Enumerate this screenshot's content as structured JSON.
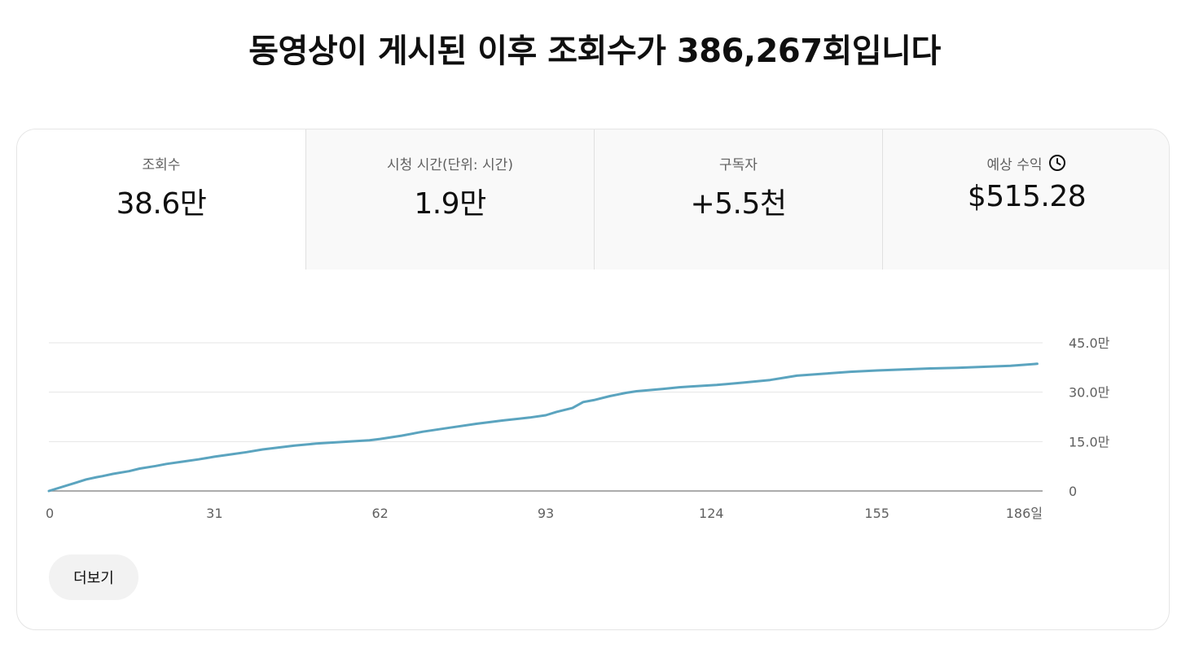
{
  "header": {
    "title_prefix": "동영상이 게시된 이후 조회수가 ",
    "title_count": "386,267",
    "title_suffix": "회입니다"
  },
  "tabs": [
    {
      "label": "조회수",
      "value": "38.6만",
      "selected": true
    },
    {
      "label": "시청 시간(단위: 시간)",
      "value": "1.9만",
      "selected": false
    },
    {
      "label": "구독자",
      "value": "+5.5천",
      "selected": false
    },
    {
      "label": "예상 수익",
      "value": "$515.28",
      "selected": false,
      "icon": "clock-icon"
    }
  ],
  "chart_data": {
    "type": "line",
    "title": "",
    "xlabel": "",
    "ylabel": "",
    "x_ticks": [
      "0",
      "31",
      "62",
      "93",
      "124",
      "155",
      "186일"
    ],
    "x_tick_values": [
      0,
      31,
      62,
      93,
      124,
      155,
      186
    ],
    "y_ticks": [
      "0",
      "15.0만",
      "30.0만",
      "45.0만"
    ],
    "y_tick_values": [
      0,
      150000,
      300000,
      450000
    ],
    "xlim": [
      0,
      186
    ],
    "ylim": [
      0,
      450000
    ],
    "grid": true,
    "color": "#5ba4bf",
    "series": [
      {
        "x": [
          0,
          5,
          7,
          9,
          10,
          12,
          15,
          17,
          20,
          22,
          25,
          28,
          31,
          34,
          37,
          40,
          43,
          46,
          50,
          55,
          60,
          62,
          66,
          70,
          75,
          80,
          85,
          90,
          93,
          95,
          98,
          100,
          102,
          105,
          108,
          110,
          115,
          118,
          120,
          125,
          130,
          135,
          138,
          140,
          145,
          150,
          155,
          160,
          165,
          170,
          175,
          180,
          185
        ],
        "y": [
          0,
          25000,
          35000,
          42000,
          45000,
          52000,
          60000,
          68000,
          76000,
          82000,
          89000,
          96000,
          104000,
          111000,
          118000,
          126000,
          132000,
          138000,
          144000,
          149000,
          154000,
          158000,
          168000,
          180000,
          192000,
          204000,
          214000,
          223000,
          230000,
          240000,
          252000,
          270000,
          276000,
          288000,
          298000,
          303000,
          310000,
          315000,
          317000,
          322000,
          329000,
          337000,
          345000,
          350000,
          356000,
          362000,
          366000,
          369000,
          372000,
          374000,
          377000,
          380000,
          386267
        ]
      }
    ]
  },
  "more_button": {
    "label": "더보기"
  }
}
